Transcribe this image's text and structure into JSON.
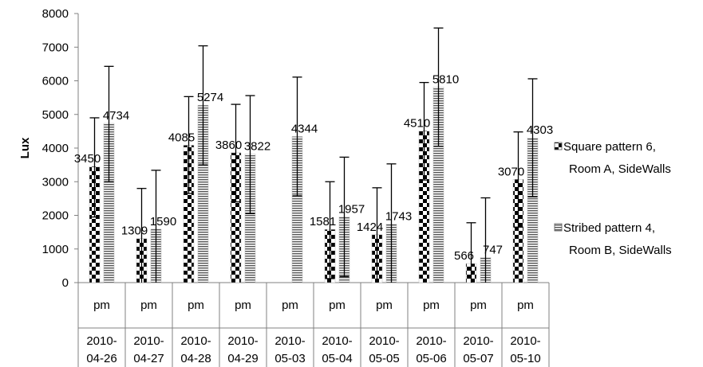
{
  "chart_data": {
    "type": "bar",
    "ylabel": "Lux",
    "ylim": [
      0,
      8000
    ],
    "ytick_step": 1000,
    "grid": false,
    "legend_position": "right",
    "categories": [
      {
        "period": "pm",
        "date": [
          "2010-",
          "04-26"
        ]
      },
      {
        "period": "pm",
        "date": [
          "2010-",
          "04-27"
        ]
      },
      {
        "period": "pm",
        "date": [
          "2010-",
          "04-28"
        ]
      },
      {
        "period": "pm",
        "date": [
          "2010-",
          "04-29"
        ]
      },
      {
        "period": "pm",
        "date": [
          "2010-",
          "05-03"
        ]
      },
      {
        "period": "pm",
        "date": [
          "2010-",
          "05-04"
        ]
      },
      {
        "period": "pm",
        "date": [
          "2010-",
          "05-05"
        ]
      },
      {
        "period": "pm",
        "date": [
          "2010-",
          "05-06"
        ]
      },
      {
        "period": "pm",
        "date": [
          "2010-",
          "05-07"
        ]
      },
      {
        "period": "pm",
        "date": [
          "2010-",
          "05-10"
        ]
      }
    ],
    "series": [
      {
        "name": [
          "Square pattern 6,",
          "Room A,  SideWalls"
        ],
        "pattern": "checker",
        "values": [
          3450,
          1309,
          4085,
          3860,
          null,
          1581,
          1424,
          4510,
          566,
          3070
        ],
        "err_low": [
          1950,
          0,
          2650,
          2400,
          null,
          120,
          0,
          3050,
          0,
          1650
        ],
        "err_high": [
          4900,
          2800,
          5530,
          5300,
          null,
          3000,
          2820,
          5950,
          1780,
          4480
        ]
      },
      {
        "name": [
          "Stribed pattern 4,",
          "Room B,  SideWalls"
        ],
        "pattern": "stripes",
        "values": [
          4734,
          1590,
          5274,
          3822,
          4344,
          1957,
          1743,
          5810,
          747,
          4303
        ],
        "err_low": [
          3000,
          0,
          3500,
          2050,
          2580,
          180,
          0,
          4050,
          0,
          2550
        ],
        "err_high": [
          6430,
          3340,
          7040,
          5560,
          6110,
          3730,
          3530,
          7570,
          2520,
          6060
        ]
      }
    ]
  }
}
